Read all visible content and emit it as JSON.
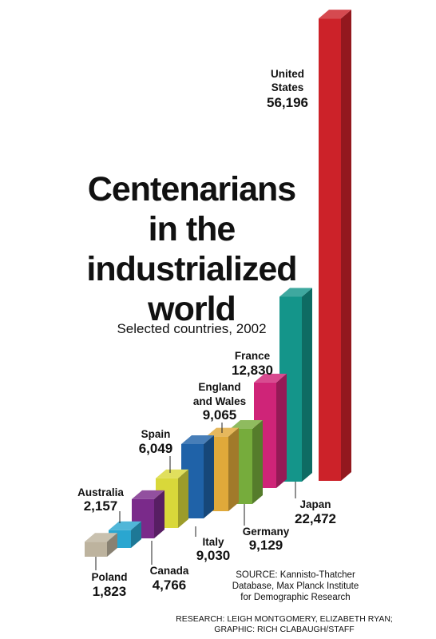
{
  "title_lines": [
    "Centenarians",
    "in the",
    "industrialized",
    "world"
  ],
  "subtitle": "Selected countries, 2002",
  "source_lines": [
    "SOURCE: Kannisto-Thatcher",
    "Database, Max Planck Institute",
    "for Demographic Research"
  ],
  "credit_lines": [
    "RESEARCH: LEIGH MONTGOMERY, ELIZABETH RYAN;",
    "GRAPHIC: RICH CLABAUGH/STAFF"
  ],
  "chart_data": {
    "type": "bar",
    "title": "Centenarians in the industrialized world",
    "subtitle": "Selected countries, 2002",
    "categories": [
      "Poland",
      "Australia",
      "Canada",
      "Spain",
      "Italy",
      "England and Wales",
      "Germany",
      "France",
      "Japan",
      "United States"
    ],
    "values": [
      1823,
      2157,
      4766,
      6049,
      9030,
      9065,
      9129,
      12830,
      22472,
      56196
    ],
    "value_labels": [
      "1,823",
      "2,157",
      "4,766",
      "6,049",
      "9,030",
      "9,065",
      "9,129",
      "12,830",
      "22,472",
      "56,196"
    ],
    "label_lines": [
      [
        "Poland"
      ],
      [
        "Australia"
      ],
      [
        "Canada"
      ],
      [
        "Spain"
      ],
      [
        "Italy"
      ],
      [
        "England",
        "and Wales"
      ],
      [
        "Germany"
      ],
      [
        "France"
      ],
      [
        "Japan"
      ],
      [
        "United",
        "States"
      ]
    ],
    "colors": [
      "#bdb39e",
      "#2aa6d0",
      "#7a2a8a",
      "#d9d83a",
      "#1f62a8",
      "#e0a93a",
      "#76ac3c",
      "#cf2478",
      "#14958a",
      "#cc2229"
    ],
    "grid": false,
    "legend": "none"
  }
}
